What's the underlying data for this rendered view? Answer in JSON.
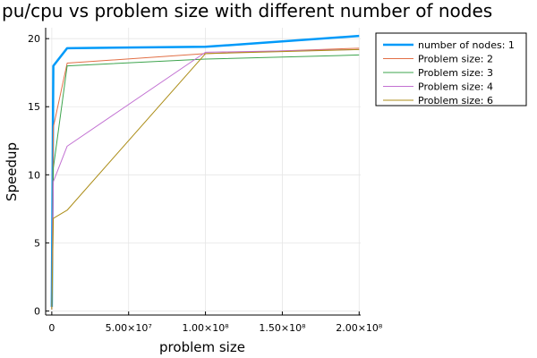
{
  "chart_data": {
    "type": "line",
    "title": "pu/cpu vs problem size with different number of nodes",
    "xlabel": "problem size",
    "ylabel": "Speedup",
    "xlim": [
      -4000000,
      201000000
    ],
    "ylim": [
      -0.3,
      20.8
    ],
    "x_ticks": [
      {
        "value": 0,
        "label": "0"
      },
      {
        "value": 50000000,
        "label": "5.00×10⁷"
      },
      {
        "value": 100000000,
        "label": "1.00×10⁸"
      },
      {
        "value": 150000000,
        "label": "1.50×10⁸"
      },
      {
        "value": 200000000,
        "label": "2.00×10⁸"
      }
    ],
    "y_ticks": [
      0,
      5,
      10,
      15,
      20
    ],
    "grid": true,
    "legend_position": "top-right",
    "series": [
      {
        "name": "number of nodes: 1",
        "color": "#009af9",
        "width": 2.5,
        "x": [
          0,
          1000000,
          10000000,
          100000000,
          200000000
        ],
        "y": [
          0.3,
          18.0,
          19.3,
          19.4,
          20.2
        ]
      },
      {
        "name": "Problem size: 2",
        "color": "#e26f46",
        "width": 1,
        "x": [
          0,
          1000000,
          10000000,
          100000000,
          200000000
        ],
        "y": [
          0.2,
          13.5,
          18.2,
          18.9,
          19.3
        ]
      },
      {
        "name": "Problem size: 3",
        "color": "#3da44d",
        "width": 1,
        "x": [
          0,
          1000000,
          10000000,
          100000000,
          200000000
        ],
        "y": [
          0.15,
          10.5,
          18.0,
          18.5,
          18.8
        ]
      },
      {
        "name": "Problem size: 4",
        "color": "#c271d2",
        "width": 1,
        "x": [
          0,
          1000000,
          10000000,
          100000000,
          200000000
        ],
        "y": [
          0.1,
          9.5,
          12.1,
          19.0,
          19.2
        ]
      },
      {
        "name": "Problem size: 6",
        "color": "#ac8d18",
        "width": 1,
        "x": [
          0,
          1000000,
          10000000,
          100000000,
          200000000
        ],
        "y": [
          0.1,
          6.8,
          7.4,
          18.9,
          19.2
        ]
      }
    ]
  }
}
